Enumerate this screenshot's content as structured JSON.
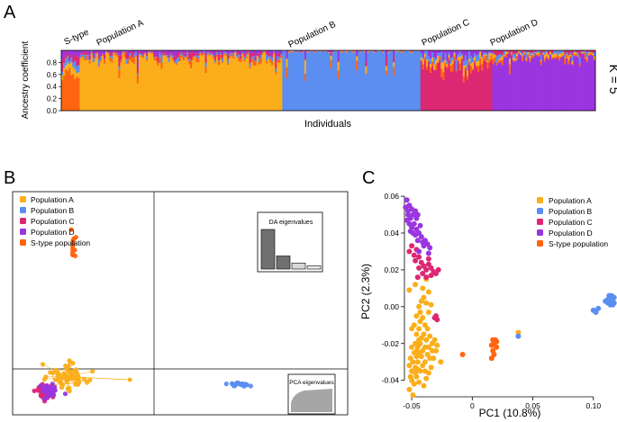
{
  "panel_labels": {
    "a": "A",
    "b": "B",
    "c": "C"
  },
  "colors": {
    "pop_a": "#FBAE1A",
    "pop_b": "#5B8EF0",
    "pop_c": "#DC2873",
    "pop_d": "#9A35E0",
    "s_type": "#FF6410",
    "eig_dark": "#707070",
    "eig_mid": "#a6a6a6",
    "eig_light": "#d8d8d8",
    "eig_lighter": "#ececec"
  },
  "chart_data": [
    {
      "panel": "A",
      "type": "bar",
      "subtype": "stacked-admixture",
      "ylabel": "Ancestry coefficient",
      "xlabel": "Individuals",
      "yticks": [
        "0.8",
        "0.6",
        "0.4",
        "0.2",
        "0.0"
      ],
      "ylim": [
        0,
        1
      ],
      "k_label": "K = 5",
      "series_order": [
        "S-type",
        "Population A",
        "Population B",
        "Population C",
        "Population D"
      ],
      "groups": [
        {
          "name": "S-type",
          "label": "S-type",
          "count": 10,
          "main": "s_type",
          "main_share": 0.62
        },
        {
          "name": "Population A",
          "label": "Population A",
          "count": 110,
          "main": "pop_a",
          "main_share": 0.86
        },
        {
          "name": "Population B",
          "label": "Population B",
          "count": 75,
          "main": "pop_b",
          "main_share": 0.98
        },
        {
          "name": "Population C",
          "label": "Population C",
          "count": 39,
          "main": "pop_c",
          "main_share": 0.74
        },
        {
          "name": "Population D",
          "label": "Population D",
          "count": 56,
          "main": "pop_d",
          "main_share": 0.85
        }
      ]
    },
    {
      "panel": "B",
      "type": "scatter",
      "subtype": "DAPC",
      "axes": "none (origin lines only)",
      "legend": [
        "Population A",
        "Population B",
        "Population C",
        "Population D",
        "S-type population"
      ],
      "legend_position": "top-left",
      "da_eigenvalues": {
        "title": "DA eigenvalues",
        "values": [
          1.0,
          0.33,
          0.15,
          0.08
        ]
      },
      "pca_eigenvalues": {
        "title": "PCA eigenvalues",
        "curve": "cumulative"
      },
      "xlim": [
        -4,
        10
      ],
      "ylim": [
        -2,
        12
      ],
      "series": [
        {
          "name": "Population A",
          "color": "pop_a",
          "centroid": [
            -1.75,
            0.4
          ],
          "spread": [
            0.45,
            0.4
          ],
          "n": 60,
          "outliers": [
            [
              0.9,
              0.2
            ]
          ]
        },
        {
          "name": "Population B",
          "color": "pop_b",
          "centroid": [
            5.45,
            -0.1
          ],
          "spread": [
            0.28,
            0.06
          ],
          "n": 22
        },
        {
          "name": "Population C",
          "color": "pop_c",
          "centroid": [
            -2.65,
            -0.55
          ],
          "spread": [
            0.18,
            0.25
          ],
          "n": 40
        },
        {
          "name": "Population D",
          "color": "pop_d",
          "centroid": [
            -2.45,
            -0.55
          ],
          "spread": [
            0.2,
            0.22
          ],
          "n": 30
        },
        {
          "name": "S-type population",
          "color": "s_type",
          "centroid": [
            -1.45,
            9.0
          ],
          "spread": [
            0.05,
            0.45
          ],
          "n": 14
        }
      ]
    },
    {
      "panel": "C",
      "type": "scatter",
      "subtype": "PCA",
      "xlabel": "PC1 (10.8%)",
      "ylabel": "PC2 (2.3%)",
      "xticks": [
        -0.05,
        0.0,
        0.05,
        0.1
      ],
      "xtick_labels": [
        "-0.05",
        "0",
        "0.05",
        "0.10"
      ],
      "yticks": [
        -0.04,
        -0.02,
        0.0,
        0.02,
        0.04,
        0.06
      ],
      "ytick_labels": [
        "-0.04",
        "-0.02",
        "0.00",
        "0.02",
        "0.04",
        "0.06"
      ],
      "xlim": [
        -0.056,
        0.118
      ],
      "ylim": [
        -0.047,
        0.062
      ],
      "legend": [
        "Population A",
        "Population B",
        "Population C",
        "Population D",
        "S-type population"
      ],
      "legend_position": "top-right",
      "series": [
        {
          "name": "Population A",
          "color": "pop_a",
          "points": [
            [
              -0.052,
              -0.045
            ],
            [
              -0.05,
              -0.04
            ],
            [
              -0.048,
              -0.042
            ],
            [
              -0.046,
              -0.038
            ],
            [
              -0.044,
              -0.041
            ],
            [
              -0.05,
              -0.035
            ],
            [
              -0.052,
              -0.032
            ],
            [
              -0.049,
              -0.03
            ],
            [
              -0.047,
              -0.033
            ],
            [
              -0.045,
              -0.03
            ],
            [
              -0.043,
              -0.035
            ],
            [
              -0.041,
              -0.032
            ],
            [
              -0.039,
              -0.03
            ],
            [
              -0.042,
              -0.027
            ],
            [
              -0.044,
              -0.025
            ],
            [
              -0.046,
              -0.027
            ],
            [
              -0.048,
              -0.025
            ],
            [
              -0.05,
              -0.022
            ],
            [
              -0.047,
              -0.02
            ],
            [
              -0.045,
              -0.022
            ],
            [
              -0.043,
              -0.02
            ],
            [
              -0.041,
              -0.024
            ],
            [
              -0.039,
              -0.022
            ],
            [
              -0.037,
              -0.026
            ],
            [
              -0.035,
              -0.028
            ],
            [
              -0.036,
              -0.022
            ],
            [
              -0.038,
              -0.018
            ],
            [
              -0.04,
              -0.015
            ],
            [
              -0.042,
              -0.017
            ],
            [
              -0.044,
              -0.012
            ],
            [
              -0.046,
              -0.015
            ],
            [
              -0.048,
              -0.01
            ],
            [
              -0.05,
              -0.012
            ],
            [
              -0.043,
              -0.008
            ],
            [
              -0.041,
              -0.006
            ],
            [
              -0.039,
              -0.01
            ],
            [
              -0.037,
              -0.012
            ],
            [
              -0.035,
              -0.016
            ],
            [
              -0.033,
              -0.02
            ],
            [
              -0.031,
              -0.018
            ],
            [
              -0.03,
              -0.024
            ],
            [
              -0.032,
              -0.028
            ],
            [
              -0.034,
              -0.033
            ],
            [
              -0.036,
              -0.036
            ],
            [
              -0.038,
              -0.039
            ],
            [
              -0.04,
              -0.043
            ],
            [
              -0.049,
              -0.048
            ],
            [
              -0.047,
              -0.036
            ],
            [
              -0.045,
              -0.034
            ],
            [
              -0.051,
              -0.028
            ],
            [
              -0.046,
              -0.005
            ],
            [
              -0.044,
              0.0
            ],
            [
              -0.042,
              0.003
            ],
            [
              -0.04,
              0.005
            ],
            [
              -0.038,
              0.002
            ],
            [
              -0.036,
              -0.003
            ],
            [
              -0.034,
              0.001
            ],
            [
              -0.052,
              0.009
            ],
            [
              -0.047,
              0.012
            ],
            [
              -0.041,
              0.01
            ],
            [
              -0.038,
              0.015
            ],
            [
              -0.036,
              0.008
            ],
            [
              -0.043,
              -0.003
            ],
            [
              -0.033,
              -0.024
            ],
            [
              -0.029,
              -0.021
            ],
            [
              -0.026,
              -0.03
            ],
            [
              -0.051,
              -0.038
            ],
            [
              -0.039,
              -0.035
            ],
            [
              -0.046,
              -0.024
            ],
            [
              -0.044,
              -0.018
            ],
            [
              0.038,
              -0.014
            ]
          ]
        },
        {
          "name": "Population B",
          "color": "pop_b",
          "points": [
            [
              0.1,
              -0.002
            ],
            [
              0.102,
              -0.003
            ],
            [
              0.104,
              -0.001
            ],
            [
              0.112,
              0.004
            ],
            [
              0.113,
              0.002
            ],
            [
              0.114,
              0.005
            ],
            [
              0.115,
              0.003
            ],
            [
              0.116,
              0.004
            ],
            [
              0.117,
              0.002
            ],
            [
              0.113,
              0.006
            ],
            [
              0.115,
              0.006
            ],
            [
              0.116,
              0.001
            ],
            [
              0.114,
              0.001
            ],
            [
              0.112,
              0.002
            ],
            [
              0.117,
              0.005
            ],
            [
              0.11,
              0.003
            ],
            [
              0.038,
              -0.016
            ]
          ]
        },
        {
          "name": "Population C",
          "color": "pop_c",
          "points": [
            [
              -0.05,
              0.033
            ],
            [
              -0.048,
              0.028
            ],
            [
              -0.046,
              0.031
            ],
            [
              -0.044,
              0.027
            ],
            [
              -0.042,
              0.024
            ],
            [
              -0.04,
              0.022
            ],
            [
              -0.038,
              0.02
            ],
            [
              -0.036,
              0.023
            ],
            [
              -0.034,
              0.021
            ],
            [
              -0.032,
              0.019
            ],
            [
              -0.03,
              0.018
            ],
            [
              -0.034,
              0.017
            ],
            [
              -0.038,
              0.016
            ],
            [
              -0.041,
              0.018
            ],
            [
              -0.044,
              0.021
            ],
            [
              -0.047,
              0.025
            ],
            [
              -0.052,
              0.03
            ],
            [
              -0.028,
              0.02
            ],
            [
              -0.036,
              0.026
            ],
            [
              -0.045,
              0.016
            ],
            [
              -0.03,
              -0.005
            ],
            [
              -0.029,
              -0.007
            ],
            [
              -0.031,
              -0.006
            ]
          ]
        },
        {
          "name": "Population D",
          "color": "pop_d",
          "points": [
            [
              -0.054,
              0.058
            ],
            [
              -0.052,
              0.055
            ],
            [
              -0.05,
              0.053
            ],
            [
              -0.053,
              0.05
            ],
            [
              -0.051,
              0.048
            ],
            [
              -0.049,
              0.05
            ],
            [
              -0.047,
              0.052
            ],
            [
              -0.046,
              0.048
            ],
            [
              -0.048,
              0.045
            ],
            [
              -0.05,
              0.043
            ],
            [
              -0.052,
              0.045
            ],
            [
              -0.054,
              0.047
            ],
            [
              -0.046,
              0.042
            ],
            [
              -0.044,
              0.04
            ],
            [
              -0.042,
              0.038
            ],
            [
              -0.045,
              0.036
            ],
            [
              -0.041,
              0.035
            ],
            [
              -0.039,
              0.036
            ],
            [
              -0.037,
              0.034
            ],
            [
              -0.035,
              0.032
            ],
            [
              -0.043,
              0.044
            ],
            [
              -0.047,
              0.039
            ],
            [
              -0.049,
              0.04
            ],
            [
              -0.051,
              0.041
            ],
            [
              -0.053,
              0.052
            ],
            [
              -0.055,
              0.054
            ],
            [
              -0.045,
              0.05
            ],
            [
              -0.04,
              0.033
            ],
            [
              -0.036,
              0.029
            ],
            [
              -0.044,
              0.03
            ]
          ]
        },
        {
          "name": "S-type population",
          "color": "s_type",
          "points": [
            [
              -0.008,
              -0.026
            ],
            [
              0.016,
              -0.028
            ],
            [
              0.017,
              -0.024
            ],
            [
              0.018,
              -0.02
            ],
            [
              0.019,
              -0.018
            ],
            [
              0.02,
              -0.022
            ],
            [
              0.018,
              -0.026
            ],
            [
              0.016,
              -0.021
            ],
            [
              0.02,
              -0.019
            ],
            [
              0.017,
              -0.018
            ]
          ]
        }
      ]
    }
  ]
}
